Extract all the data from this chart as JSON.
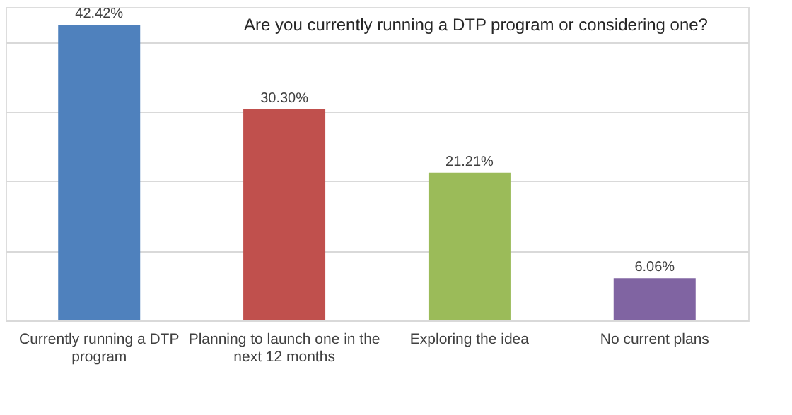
{
  "chart_data": {
    "type": "bar",
    "title": "Are you currently running a DTP program or considering one?",
    "categories": [
      "Currently running a DTP program",
      "Planning to launch one in the next 12 months",
      "Exploring the idea",
      "No current plans"
    ],
    "values": [
      42.42,
      30.3,
      21.21,
      6.06
    ],
    "colors": [
      "#4f81bd",
      "#c0504d",
      "#9bbb59",
      "#8064a2"
    ],
    "value_labels": [
      "42.42%",
      "30.30%",
      "21.21%",
      "6.06%"
    ],
    "ylim": [
      0,
      45
    ],
    "grid": "y",
    "tick_labels": "x"
  }
}
